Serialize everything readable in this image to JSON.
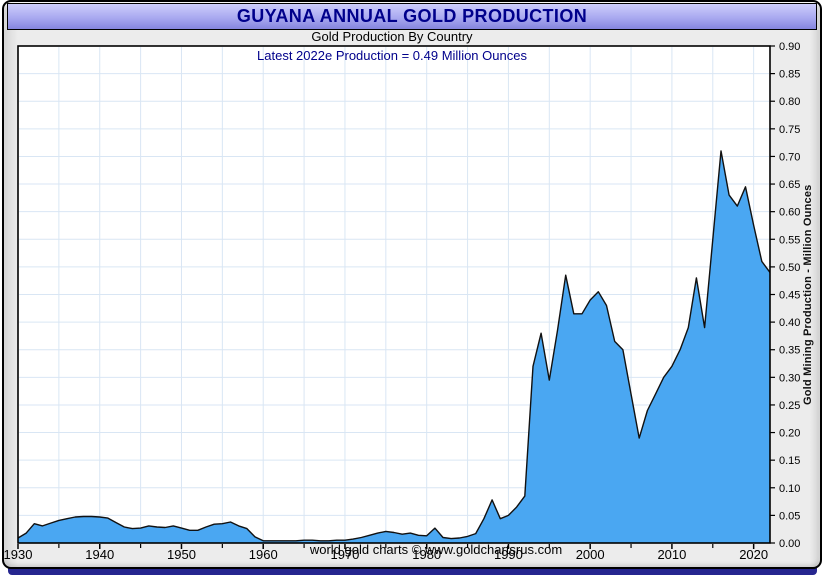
{
  "header": {
    "title": "GUYANA ANNUAL GOLD PRODUCTION"
  },
  "footer": {
    "credit": "world gold charts © www.goldchartsrus.com"
  },
  "colors": {
    "title_text": "#00008b",
    "title_band_top": "#cdcdfb",
    "title_band_bottom": "#8585de",
    "annotation_text": "#00008b",
    "area_fill": "#4aa7f2",
    "line_stroke": "#111111",
    "gridline": "#d9e6f4",
    "plot_border": "#000000",
    "frame_bg": "#ececec",
    "bottom_bar": "#26268f"
  },
  "chart_data": {
    "type": "area",
    "title": "GUYANA ANNUAL GOLD PRODUCTION",
    "subtitle": "Gold Production By Country",
    "annotation": "Latest 2022e Production = 0.49 Million Ounces",
    "xlabel": "",
    "ylabel": "Gold Mining Production - Million Ounces",
    "xlim": [
      1930,
      2022
    ],
    "ylim": [
      0,
      0.9
    ],
    "grid": true,
    "legend": "none",
    "x_tick_labels": [
      1930,
      1940,
      1950,
      1960,
      1970,
      1980,
      1990,
      2000,
      2010,
      2020
    ],
    "x_minor_ticks": [
      1935,
      1945,
      1955,
      1965,
      1975,
      1985,
      1995,
      2005,
      2015
    ],
    "y_tick_labels": [
      "0.00",
      "0.05",
      "0.10",
      "0.15",
      "0.20",
      "0.25",
      "0.30",
      "0.35",
      "0.40",
      "0.45",
      "0.50",
      "0.55",
      "0.60",
      "0.65",
      "0.70",
      "0.75",
      "0.80",
      "0.85",
      "0.90"
    ],
    "y_tick_step": 0.05,
    "x": [
      1930,
      1931,
      1932,
      1933,
      1934,
      1935,
      1936,
      1937,
      1938,
      1939,
      1940,
      1941,
      1942,
      1943,
      1944,
      1945,
      1946,
      1947,
      1948,
      1949,
      1950,
      1951,
      1952,
      1953,
      1954,
      1955,
      1956,
      1957,
      1958,
      1959,
      1960,
      1961,
      1962,
      1963,
      1964,
      1965,
      1966,
      1967,
      1968,
      1969,
      1970,
      1971,
      1972,
      1973,
      1974,
      1975,
      1976,
      1977,
      1978,
      1979,
      1980,
      1981,
      1982,
      1983,
      1984,
      1985,
      1986,
      1987,
      1988,
      1989,
      1990,
      1991,
      1992,
      1993,
      1994,
      1995,
      1996,
      1997,
      1998,
      1999,
      2000,
      2001,
      2002,
      2003,
      2004,
      2005,
      2006,
      2007,
      2008,
      2009,
      2010,
      2011,
      2012,
      2013,
      2014,
      2015,
      2016,
      2017,
      2018,
      2019,
      2020,
      2021,
      2022
    ],
    "values": [
      0.009,
      0.018,
      0.035,
      0.031,
      0.036,
      0.041,
      0.044,
      0.047,
      0.048,
      0.048,
      0.047,
      0.045,
      0.037,
      0.029,
      0.026,
      0.027,
      0.031,
      0.029,
      0.028,
      0.031,
      0.027,
      0.023,
      0.023,
      0.029,
      0.034,
      0.035,
      0.038,
      0.031,
      0.026,
      0.011,
      0.004,
      0.004,
      0.004,
      0.004,
      0.004,
      0.005,
      0.005,
      0.004,
      0.004,
      0.005,
      0.005,
      0.007,
      0.01,
      0.014,
      0.018,
      0.021,
      0.019,
      0.016,
      0.018,
      0.014,
      0.013,
      0.027,
      0.01,
      0.008,
      0.009,
      0.012,
      0.017,
      0.044,
      0.078,
      0.044,
      0.05,
      0.065,
      0.085,
      0.32,
      0.38,
      0.295,
      0.385,
      0.485,
      0.415,
      0.415,
      0.44,
      0.455,
      0.43,
      0.365,
      0.35,
      0.27,
      0.19,
      0.24,
      0.27,
      0.3,
      0.32,
      0.35,
      0.39,
      0.48,
      0.39,
      0.55,
      0.71,
      0.63,
      0.61,
      0.645,
      0.575,
      0.51,
      0.49
    ]
  }
}
